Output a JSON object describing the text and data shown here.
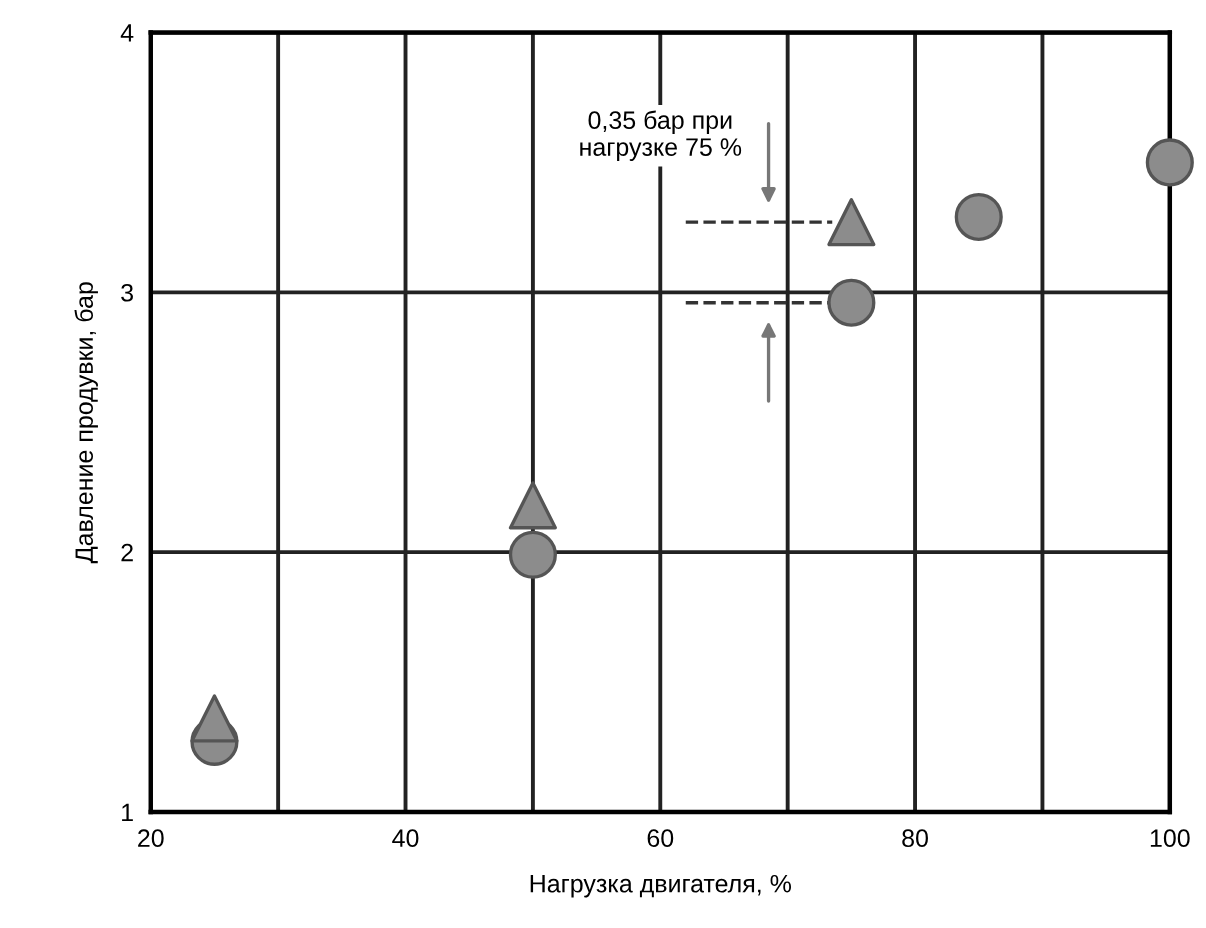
{
  "chart_data": {
    "type": "scatter",
    "xlabel": "Нагрузка двигателя, %",
    "ylabel": "Давление продувки, бар",
    "xlim": [
      20,
      100
    ],
    "ylim": [
      1,
      4
    ],
    "xticks": [
      20,
      {
        "value": 30,
        "label": null
      },
      40,
      {
        "value": 50,
        "label": null
      },
      60,
      {
        "value": 70,
        "label": null
      },
      80,
      {
        "value": 90,
        "label": null
      },
      100
    ],
    "yticks": [
      1,
      2,
      3,
      4
    ],
    "grid": true,
    "series": [
      {
        "color": "#8c8c8c",
        "marker": "circle",
        "x": [
          25,
          50,
          75,
          85,
          100
        ],
        "values": [
          1.27,
          1.99,
          2.96,
          3.29,
          3.5
        ]
      },
      {
        "color": "#8c8c8c",
        "marker": "triangle",
        "x": [
          25,
          50,
          75
        ],
        "values": [
          1.36,
          2.18,
          3.27
        ]
      }
    ],
    "annotations": [
      "0,35 бар при\nнагрузке 75 %"
    ]
  }
}
